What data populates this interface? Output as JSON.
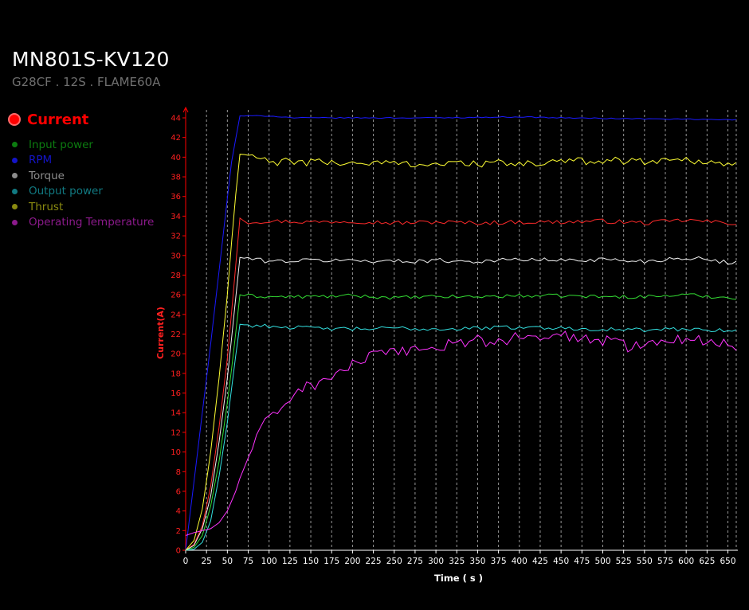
{
  "header": {
    "title": "MN801S-KV120",
    "subtitle": "G28CF . 12S . FLAME60A"
  },
  "legend": {
    "active": {
      "label": "Current",
      "color": "#ff0000"
    },
    "items": [
      {
        "label": "Input power",
        "color": "#0c7c10"
      },
      {
        "label": "RPM",
        "color": "#1414c8"
      },
      {
        "label": "Torque",
        "color": "#8c8c8c"
      },
      {
        "label": "Output power",
        "color": "#117a82"
      },
      {
        "label": "Thrust",
        "color": "#8a8a10"
      },
      {
        "label": "Operating Temperature",
        "color": "#8c1a8c"
      }
    ]
  },
  "chart_data": {
    "type": "line",
    "xlabel": "Time ( s )",
    "ylabel": "Current(A)",
    "xlim": [
      0,
      660
    ],
    "ylim": [
      0,
      44
    ],
    "x_ticks": [
      0,
      25,
      50,
      75,
      100,
      125,
      150,
      175,
      200,
      225,
      250,
      275,
      300,
      325,
      350,
      375,
      400,
      425,
      450,
      475,
      500,
      525,
      550,
      575,
      600,
      625,
      650
    ],
    "y_ticks": [
      0,
      2,
      4,
      6,
      8,
      10,
      12,
      14,
      16,
      18,
      20,
      22,
      24,
      26,
      28,
      30,
      32,
      34,
      36,
      38,
      40,
      42,
      44
    ],
    "grid": true,
    "series": [
      {
        "name": "Current",
        "color": "#ff2a2a",
        "rise_end_x": 65,
        "plateau": 33.5,
        "noise": 0.22,
        "points": [
          [
            0,
            0
          ],
          [
            10,
            0.6
          ],
          [
            20,
            2.5
          ],
          [
            30,
            6.5
          ],
          [
            40,
            12.5
          ],
          [
            50,
            19.5
          ],
          [
            58,
            27
          ],
          [
            65,
            33.8
          ],
          [
            75,
            33.4
          ],
          [
            100,
            33.5
          ],
          [
            150,
            33.4
          ],
          [
            200,
            33.5
          ],
          [
            250,
            33.3
          ],
          [
            300,
            33.4
          ],
          [
            350,
            33.3
          ],
          [
            400,
            33.4
          ],
          [
            450,
            33.4
          ],
          [
            500,
            33.5
          ],
          [
            550,
            33.3
          ],
          [
            600,
            33.6
          ],
          [
            650,
            33.3
          ],
          [
            660,
            33.3
          ]
        ]
      },
      {
        "name": "Input power",
        "color": "#33dd33",
        "rise_end_x": 65,
        "plateau": 25.8,
        "noise": 0.18,
        "points": [
          [
            0,
            0
          ],
          [
            10,
            0.3
          ],
          [
            20,
            1.5
          ],
          [
            30,
            4.5
          ],
          [
            40,
            9
          ],
          [
            50,
            15
          ],
          [
            58,
            20.5
          ],
          [
            65,
            26
          ],
          [
            75,
            25.9
          ],
          [
            100,
            25.8
          ],
          [
            150,
            25.8
          ],
          [
            200,
            25.9
          ],
          [
            250,
            25.7
          ],
          [
            300,
            25.8
          ],
          [
            350,
            25.8
          ],
          [
            400,
            25.9
          ],
          [
            450,
            25.9
          ],
          [
            500,
            25.8
          ],
          [
            550,
            25.8
          ],
          [
            600,
            26
          ],
          [
            650,
            25.7
          ],
          [
            660,
            25.7
          ]
        ]
      },
      {
        "name": "RPM",
        "color": "#1a1aff",
        "rise_end_x": 65,
        "plateau": 43.8,
        "noise": 0.05,
        "points": [
          [
            0,
            0
          ],
          [
            30,
            21
          ],
          [
            55,
            39.5
          ],
          [
            65,
            44.2
          ],
          [
            100,
            44.2
          ],
          [
            130,
            44
          ],
          [
            200,
            44
          ],
          [
            300,
            44
          ],
          [
            400,
            44.1
          ],
          [
            450,
            44
          ],
          [
            550,
            43.9
          ],
          [
            660,
            43.8
          ]
        ]
      },
      {
        "name": "Torque",
        "color": "#f2f2f2",
        "rise_end_x": 65,
        "plateau": 29.5,
        "noise": 0.22,
        "points": [
          [
            0,
            0
          ],
          [
            10,
            0.5
          ],
          [
            20,
            2.2
          ],
          [
            30,
            5.5
          ],
          [
            40,
            11
          ],
          [
            50,
            17.5
          ],
          [
            58,
            24
          ],
          [
            65,
            29.8
          ],
          [
            75,
            29.7
          ],
          [
            100,
            29.4
          ],
          [
            150,
            29.5
          ],
          [
            200,
            29.5
          ],
          [
            250,
            29.4
          ],
          [
            300,
            29.5
          ],
          [
            350,
            29.4
          ],
          [
            400,
            29.6
          ],
          [
            450,
            29.5
          ],
          [
            500,
            29.6
          ],
          [
            550,
            29.4
          ],
          [
            600,
            29.8
          ],
          [
            650,
            29.3
          ],
          [
            660,
            29.3
          ]
        ]
      },
      {
        "name": "Output power",
        "color": "#33e0e0",
        "rise_end_x": 65,
        "plateau": 22.6,
        "noise": 0.2,
        "points": [
          [
            0,
            0
          ],
          [
            10,
            0.1
          ],
          [
            20,
            0.8
          ],
          [
            30,
            3
          ],
          [
            40,
            7.5
          ],
          [
            50,
            13
          ],
          [
            58,
            18.5
          ],
          [
            65,
            23
          ],
          [
            75,
            22.9
          ],
          [
            100,
            22.8
          ],
          [
            150,
            22.6
          ],
          [
            200,
            22.5
          ],
          [
            250,
            22.6
          ],
          [
            300,
            22.5
          ],
          [
            350,
            22.6
          ],
          [
            400,
            22.7
          ],
          [
            450,
            22.6
          ],
          [
            500,
            22.5
          ],
          [
            550,
            22.4
          ],
          [
            600,
            22.5
          ],
          [
            650,
            22.4
          ],
          [
            660,
            22.4
          ]
        ]
      },
      {
        "name": "Thrust",
        "color": "#ffff33",
        "rise_end_x": 65,
        "plateau": 39.6,
        "noise": 0.4,
        "points": [
          [
            0,
            0
          ],
          [
            10,
            1
          ],
          [
            20,
            4.2
          ],
          [
            30,
            10
          ],
          [
            40,
            17.5
          ],
          [
            50,
            26
          ],
          [
            58,
            34.5
          ],
          [
            65,
            40.3
          ],
          [
            75,
            40.2
          ],
          [
            100,
            39.5
          ],
          [
            150,
            39.5
          ],
          [
            200,
            39.4
          ],
          [
            250,
            39.4
          ],
          [
            300,
            39.3
          ],
          [
            350,
            39.4
          ],
          [
            400,
            39.3
          ],
          [
            450,
            39.5
          ],
          [
            500,
            39.7
          ],
          [
            550,
            39.6
          ],
          [
            600,
            39.8
          ],
          [
            650,
            39.3
          ],
          [
            660,
            39.5
          ]
        ]
      },
      {
        "name": "Operating Temperature",
        "color": "#ff33ff",
        "rise_end_x": 0,
        "plateau": 0,
        "noise": 0.45,
        "points": [
          [
            0,
            1.5
          ],
          [
            10,
            1.8
          ],
          [
            20,
            2.0
          ],
          [
            30,
            2.2
          ],
          [
            40,
            2.8
          ],
          [
            50,
            4
          ],
          [
            60,
            6
          ],
          [
            70,
            8.5
          ],
          [
            80,
            10.5
          ],
          [
            90,
            12.2
          ],
          [
            100,
            13.6
          ],
          [
            110,
            14.1
          ],
          [
            120,
            15
          ],
          [
            130,
            16
          ],
          [
            140,
            16.6
          ],
          [
            150,
            16.7
          ],
          [
            160,
            17
          ],
          [
            170,
            17.4
          ],
          [
            180,
            18
          ],
          [
            190,
            18.4
          ],
          [
            200,
            18.9
          ],
          [
            210,
            19.3
          ],
          [
            220,
            19.6
          ],
          [
            230,
            19.9
          ],
          [
            240,
            20
          ],
          [
            250,
            20
          ],
          [
            260,
            20.2
          ],
          [
            270,
            20.5
          ],
          [
            280,
            20.6
          ],
          [
            290,
            20.6
          ],
          [
            300,
            20.4
          ],
          [
            310,
            20.7
          ],
          [
            320,
            21.2
          ],
          [
            330,
            21.3
          ],
          [
            340,
            21.1
          ],
          [
            350,
            21.4
          ],
          [
            360,
            21.1
          ],
          [
            370,
            21.3
          ],
          [
            380,
            21.2
          ],
          [
            390,
            21.5
          ],
          [
            400,
            21.8
          ],
          [
            410,
            21.9
          ],
          [
            420,
            21.6
          ],
          [
            430,
            21.3
          ],
          [
            440,
            21.6
          ],
          [
            450,
            21.9
          ],
          [
            460,
            21.8
          ],
          [
            470,
            21.5
          ],
          [
            480,
            21.6
          ],
          [
            490,
            21.2
          ],
          [
            500,
            21.3
          ],
          [
            510,
            21.5
          ],
          [
            520,
            21.1
          ],
          [
            530,
            20.7
          ],
          [
            540,
            20.9
          ],
          [
            550,
            21.2
          ],
          [
            560,
            21.3
          ],
          [
            570,
            21.4
          ],
          [
            580,
            21.6
          ],
          [
            590,
            21.4
          ],
          [
            600,
            21.7
          ],
          [
            610,
            21.5
          ],
          [
            620,
            21.3
          ],
          [
            630,
            21.2
          ],
          [
            640,
            20.9
          ],
          [
            650,
            21.1
          ],
          [
            660,
            20.8
          ]
        ]
      }
    ]
  }
}
